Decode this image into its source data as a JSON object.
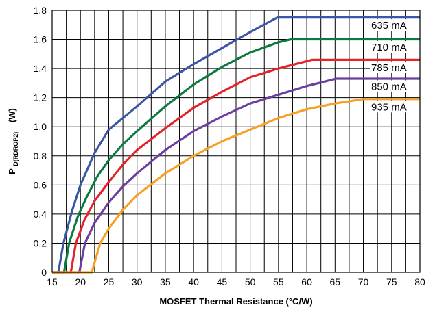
{
  "chart_data": {
    "type": "line",
    "title": "",
    "xlabel": "MOSFET Thermal Resistance (°C/W)",
    "ylabel": {
      "main": "P",
      "subscript": "D(RDROP2)",
      "unit": "(W)"
    },
    "xlim": [
      15,
      80
    ],
    "ylim": [
      0,
      1.8
    ],
    "x_ticks": [
      "15",
      "20",
      "25",
      "30",
      "35",
      "40",
      "45",
      "50",
      "55",
      "60",
      "65",
      "70",
      "75",
      "80"
    ],
    "y_ticks": [
      "0",
      "0.2",
      "0.4",
      "0.6",
      "0.8",
      "1.0",
      "1.2",
      "1.4",
      "1.6",
      "1.8"
    ],
    "grid": {
      "x_step": 2.5,
      "y_step": 0.2,
      "on": true
    },
    "legend": "inline-right",
    "series": [
      {
        "name": "635 mA",
        "color": "#3b56a6",
        "points": [
          [
            15,
            0
          ],
          [
            16.1,
            0
          ],
          [
            17,
            0.2
          ],
          [
            18.5,
            0.42
          ],
          [
            20,
            0.6
          ],
          [
            22.5,
            0.82
          ],
          [
            25,
            0.98
          ],
          [
            30,
            1.14
          ],
          [
            35,
            1.31
          ],
          [
            40,
            1.43
          ],
          [
            45,
            1.54
          ],
          [
            50,
            1.65
          ],
          [
            54.8,
            1.75
          ],
          [
            80,
            1.75
          ]
        ]
      },
      {
        "name": "710 mA",
        "color": "#0b7a3e",
        "points": [
          [
            15,
            0
          ],
          [
            17.1,
            0
          ],
          [
            18,
            0.2
          ],
          [
            19.5,
            0.38
          ],
          [
            21,
            0.51
          ],
          [
            23,
            0.66
          ],
          [
            25,
            0.77
          ],
          [
            27.5,
            0.88
          ],
          [
            30,
            0.97
          ],
          [
            35,
            1.14
          ],
          [
            40,
            1.29
          ],
          [
            45,
            1.41
          ],
          [
            50,
            1.51
          ],
          [
            55,
            1.58
          ],
          [
            57.2,
            1.6
          ],
          [
            80,
            1.6
          ]
        ]
      },
      {
        "name": "785 mA",
        "color": "#e4232a",
        "points": [
          [
            15,
            0
          ],
          [
            18.3,
            0
          ],
          [
            19.2,
            0.2
          ],
          [
            20.7,
            0.36
          ],
          [
            22.5,
            0.49
          ],
          [
            25,
            0.62
          ],
          [
            27.5,
            0.74
          ],
          [
            30,
            0.84
          ],
          [
            35,
            0.99
          ],
          [
            40,
            1.13
          ],
          [
            45,
            1.24
          ],
          [
            50,
            1.34
          ],
          [
            55,
            1.4
          ],
          [
            61,
            1.46
          ],
          [
            80,
            1.46
          ]
        ]
      },
      {
        "name": "850 mA",
        "color": "#6a3fa0",
        "points": [
          [
            15,
            0
          ],
          [
            19.8,
            0
          ],
          [
            20.8,
            0.2
          ],
          [
            22.5,
            0.34
          ],
          [
            25,
            0.48
          ],
          [
            27.5,
            0.59
          ],
          [
            30,
            0.68
          ],
          [
            35,
            0.84
          ],
          [
            40,
            0.97
          ],
          [
            45,
            1.07
          ],
          [
            50,
            1.16
          ],
          [
            55,
            1.22
          ],
          [
            60,
            1.28
          ],
          [
            65.2,
            1.33
          ],
          [
            80,
            1.33
          ]
        ]
      },
      {
        "name": "935 mA",
        "color": "#f7a023",
        "points": [
          [
            15,
            0
          ],
          [
            22,
            0
          ],
          [
            23.5,
            0.2
          ],
          [
            25,
            0.3
          ],
          [
            27.5,
            0.43
          ],
          [
            30,
            0.53
          ],
          [
            35,
            0.68
          ],
          [
            40,
            0.8
          ],
          [
            45,
            0.9
          ],
          [
            50,
            0.98
          ],
          [
            55,
            1.06
          ],
          [
            60,
            1.12
          ],
          [
            65,
            1.16
          ],
          [
            70,
            1.19
          ],
          [
            80,
            1.19
          ]
        ]
      }
    ]
  }
}
